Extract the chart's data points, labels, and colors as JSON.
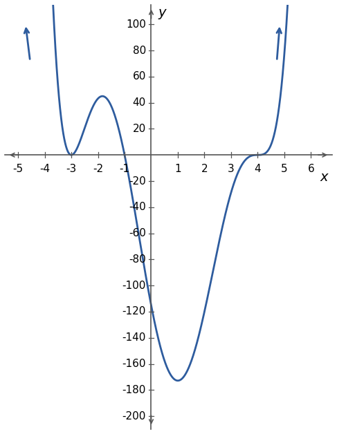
{
  "title": "",
  "xlabel": "x",
  "ylabel": "y",
  "xlim": [
    -5.5,
    6.8
  ],
  "ylim": [
    -210,
    115
  ],
  "xticks": [
    -5,
    -4,
    -3,
    -2,
    -1,
    1,
    2,
    3,
    4,
    5,
    6
  ],
  "yticks": [
    -200,
    -180,
    -160,
    -140,
    -120,
    -100,
    -80,
    -60,
    -40,
    -20,
    20,
    40,
    60,
    80,
    100
  ],
  "line_color": "#2e5c9e",
  "line_width": 2.0,
  "background_color": "#ffffff",
  "figsize": [
    4.87,
    6.28
  ],
  "dpi": 100,
  "spine_color": "#555555",
  "tick_color": "#555555",
  "label_fontsize": 14,
  "tick_fontsize": 11
}
